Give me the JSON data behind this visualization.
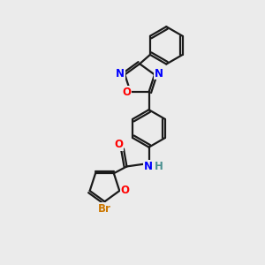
{
  "bg_color": "#ebebeb",
  "bond_color": "#1a1a1a",
  "label_colors": {
    "O": "#ff0000",
    "N": "#0000ff",
    "Br": "#cc7700",
    "H": "#4a9090",
    "C": "#1a1a1a"
  }
}
